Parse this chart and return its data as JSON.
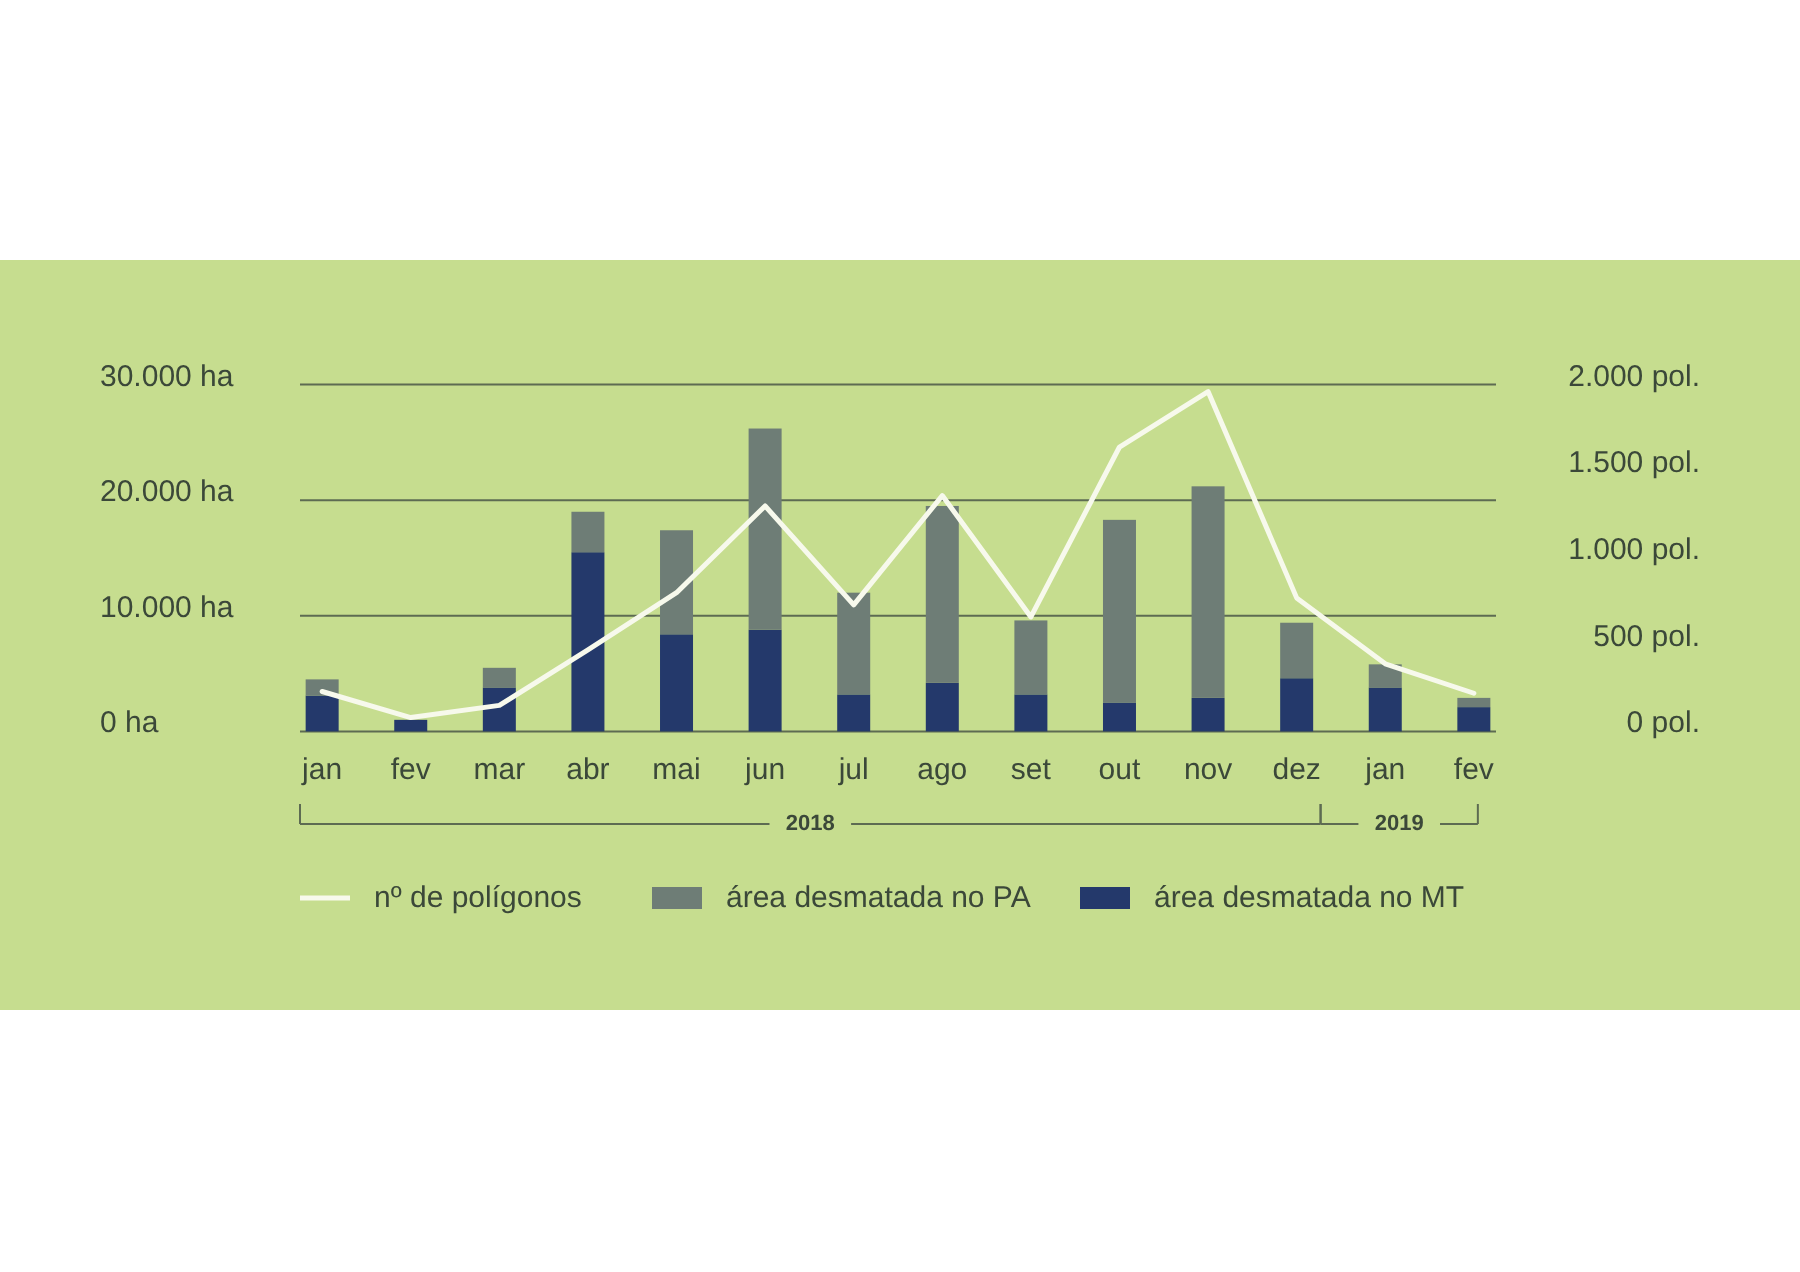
{
  "chart_data": {
    "type": "bar",
    "stacked": true,
    "categories": [
      "jan",
      "fev",
      "mar",
      "abr",
      "mai",
      "jun",
      "jul",
      "ago",
      "set",
      "out",
      "nov",
      "dez",
      "jan",
      "fev"
    ],
    "series": [
      {
        "name": "área desmatada no MT",
        "color": "#24396b",
        "values": [
          3100,
          1000,
          3800,
          15500,
          8400,
          8800,
          3200,
          4200,
          3200,
          2500,
          2900,
          4600,
          3800,
          2100
        ]
      },
      {
        "name": "área desmatada no PA",
        "color": "#6e7d76",
        "values": [
          1400,
          0,
          1700,
          3500,
          9000,
          17400,
          8800,
          15300,
          6400,
          15800,
          18300,
          4800,
          2000,
          800
        ]
      },
      {
        "name": "nº de polígonos",
        "type": "line",
        "axis": "y2",
        "color": "#f7f9ec",
        "values": [
          230,
          80,
          150,
          470,
          800,
          1300,
          730,
          1360,
          660,
          1640,
          1960,
          770,
          390,
          220
        ]
      }
    ],
    "ylim": [
      0,
      30000
    ],
    "yticks": [
      {
        "value": 0,
        "label": "0 ha"
      },
      {
        "value": 10000,
        "label": "10.000 ha"
      },
      {
        "value": 20000,
        "label": "20.000 ha"
      },
      {
        "value": 30000,
        "label": "30.000 ha"
      }
    ],
    "y2lim": [
      0,
      2000
    ],
    "y2ticks": [
      {
        "value": 0,
        "label": "0 pol."
      },
      {
        "value": 500,
        "label": "500 pol."
      },
      {
        "value": 1000,
        "label": "1.000 pol."
      },
      {
        "value": 1500,
        "label": "1.500 pol."
      },
      {
        "value": 2000,
        "label": "2.000 pol."
      }
    ],
    "grid": "y",
    "legend": "bottom",
    "annotations": [
      "2018",
      "2019"
    ]
  }
}
